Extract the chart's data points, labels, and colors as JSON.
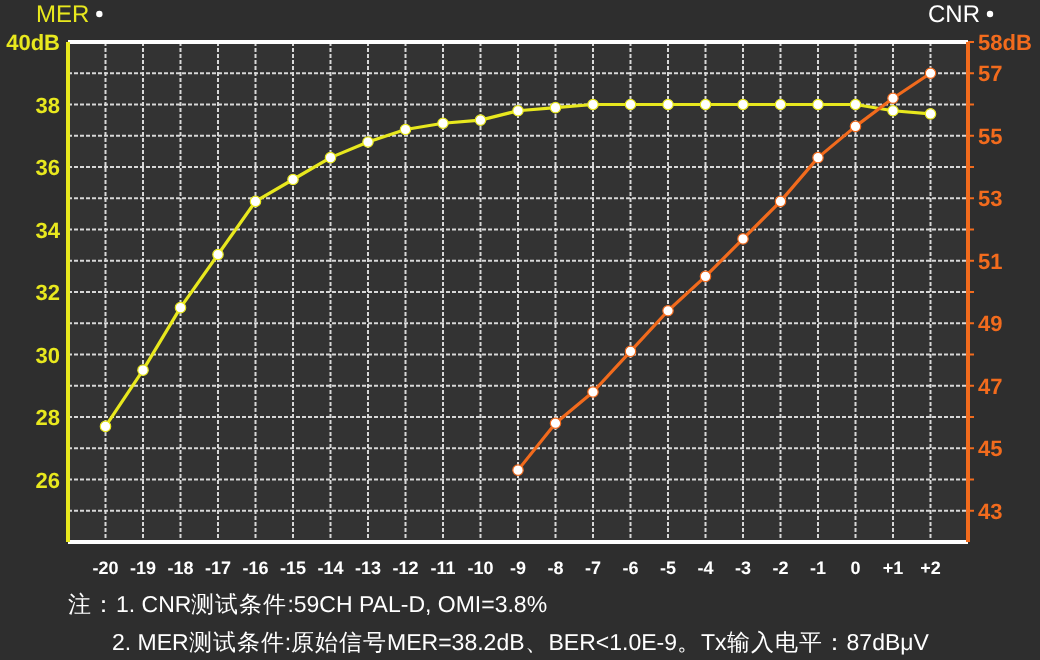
{
  "chart_data": {
    "type": "line",
    "ylabel": "MER",
    "y2label": "CNR",
    "xlim": [
      -21,
      3
    ],
    "xticks": [
      -20,
      -19,
      -18,
      -17,
      -16,
      -15,
      -14,
      -13,
      -12,
      -11,
      -10,
      -9,
      -8,
      -7,
      -6,
      -5,
      -4,
      -3,
      -2,
      -1,
      0,
      {
        "value": 1,
        "label": "+1"
      },
      {
        "value": 2,
        "label": "+2"
      }
    ],
    "ylim": [
      24,
      40
    ],
    "yticks": [
      {
        "value": 25,
        "label": null
      },
      26,
      {
        "value": 27,
        "label": null
      },
      28,
      {
        "value": 29,
        "label": null
      },
      30,
      {
        "value": 31,
        "label": null
      },
      32,
      {
        "value": 33,
        "label": null
      },
      34,
      {
        "value": 35,
        "label": null
      },
      36,
      {
        "value": 37,
        "label": null
      },
      38,
      {
        "value": 39,
        "label": null
      },
      {
        "value": 40,
        "label": "40dB"
      }
    ],
    "y2lim": [
      42,
      58
    ],
    "y2ticks": [
      43,
      {
        "value": 44,
        "label": null
      },
      45,
      {
        "value": 46,
        "label": null
      },
      47,
      {
        "value": 48,
        "label": null
      },
      49,
      {
        "value": 50,
        "label": null
      },
      51,
      {
        "value": 52,
        "label": null
      },
      53,
      {
        "value": 54,
        "label": null
      },
      55,
      {
        "value": 56,
        "label": null
      },
      57,
      {
        "value": 58,
        "label": "58dB"
      }
    ],
    "grid": true,
    "marker": "circle",
    "series": [
      {
        "color": "#e8e81e",
        "x": [
          -20,
          -19,
          -18,
          -17,
          -16,
          -15,
          -14,
          -13,
          -12,
          -11,
          -10,
          -9,
          -8,
          -7,
          -6,
          -5,
          -4,
          -3,
          -2,
          -1,
          0,
          1,
          2
        ],
        "values": [
          27.7,
          29.5,
          31.5,
          33.2,
          34.9,
          35.6,
          36.3,
          36.8,
          37.2,
          37.4,
          37.5,
          37.8,
          37.9,
          38,
          38,
          38,
          38,
          38,
          38,
          38,
          38,
          37.8,
          37.7
        ]
      },
      {
        "color": "#f26b1d",
        "axis": "y2",
        "x": [
          -9,
          -8,
          -7,
          -6,
          -5,
          -4,
          -3,
          -2,
          -1,
          0,
          1,
          2
        ],
        "values": [
          44.3,
          45.8,
          46.8,
          48.1,
          49.4,
          50.5,
          51.7,
          52.9,
          54.3,
          55.3,
          56.2,
          57
        ]
      }
    ],
    "annotations": [
      "注：1. CNR测试条件:59CH  PAL-D, OMI=3.8%",
      "2. MER测试条件:原始信号MER=38.2dB、BER<1.0E-9。Tx输入电平：87dBμV"
    ]
  }
}
